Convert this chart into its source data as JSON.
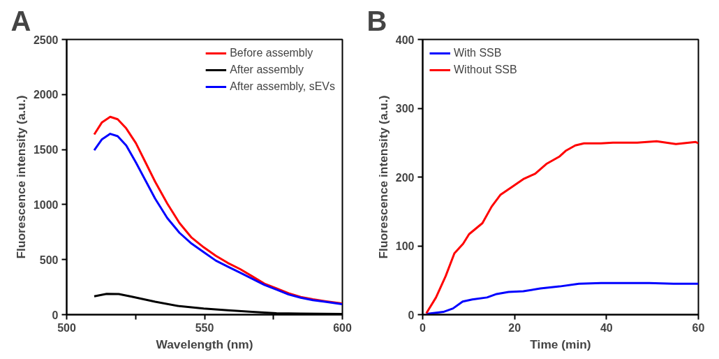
{
  "chart_data": [
    {
      "type": "line",
      "title": "A",
      "xlabel": "Wavelength (nm)",
      "ylabel": "Fluorescence intensity (a.u.)",
      "xlim": [
        500,
        600
      ],
      "ylim": [
        0,
        2500
      ],
      "xticks": [
        500,
        {
          "value": 525,
          "label": null
        },
        550,
        {
          "value": 575,
          "label": null
        },
        600
      ],
      "yticks": [
        0,
        500,
        1000,
        1500,
        2000,
        2500
      ],
      "grid": false,
      "legend": "top right",
      "series": [
        {
          "name": "Before assembly",
          "color": "#ff0000",
          "x": [
            510,
            512.8,
            515.8,
            518.5,
            521.6,
            525.1,
            528.6,
            532.1,
            536.5,
            540.9,
            545.3,
            549.7,
            554.1,
            558.5,
            562.9,
            567.3,
            571.7,
            576.1,
            580.5,
            584.9,
            589.3,
            593.7,
            599.9
          ],
          "values": [
            1637,
            1747,
            1797,
            1775,
            1692,
            1559,
            1383,
            1207,
            1009,
            833,
            700,
            612,
            535,
            469,
            414,
            348,
            282,
            238,
            194,
            161,
            139,
            123,
            101
          ]
        },
        {
          "name": "After assembly",
          "color": "#000000",
          "x": [
            510,
            514.5,
            518.9,
            523.3,
            532.1,
            540.9,
            549.7,
            558.5,
            567.3,
            576.1,
            584.9,
            599.9
          ],
          "values": [
            167,
            189,
            187,
            165,
            117,
            77,
            55,
            40,
            26,
            13,
            9,
            7
          ]
        },
        {
          "name": "After assembly, sEVs",
          "color": "#0000ff",
          "x": [
            510,
            512.8,
            515.8,
            518.5,
            521.6,
            525.1,
            528.6,
            532.1,
            536.5,
            540.9,
            545.3,
            549.7,
            554.1,
            558.5,
            562.9,
            567.3,
            571.7,
            576.1,
            580.5,
            584.9,
            589.3,
            593.7,
            599.9
          ],
          "values": [
            1493,
            1593,
            1643,
            1621,
            1537,
            1383,
            1218,
            1053,
            877,
            744,
            645,
            568,
            491,
            436,
            381,
            326,
            271,
            227,
            183,
            154,
            132,
            117,
            95
          ]
        }
      ]
    },
    {
      "type": "line",
      "title": "B",
      "xlabel": "Time (min)",
      "ylabel": "Fluorescence intensity (a.u.)",
      "xlim": [
        0,
        60
      ],
      "ylim": [
        0,
        400
      ],
      "xticks": [
        0,
        20,
        40,
        60
      ],
      "yticks": [
        0,
        100,
        200,
        300,
        400
      ],
      "grid": false,
      "legend": "top left",
      "series": [
        {
          "name": "With SSB",
          "color": "#0000ff",
          "x": [
            0.8,
            4.5,
            6.6,
            8.7,
            10.8,
            14.0,
            16.1,
            18.7,
            21.9,
            25.6,
            29.8,
            34.0,
            38.8,
            44.1,
            49.3,
            54.6,
            60
          ],
          "values": [
            1,
            4,
            9,
            19,
            22,
            25,
            30,
            33,
            34,
            38,
            41,
            45,
            46,
            46,
            46,
            45,
            45
          ]
        },
        {
          "name": "Without SSB",
          "color": "#ff0000",
          "x": [
            0.8,
            2.9,
            5.0,
            6.9,
            8.8,
            10.1,
            13.0,
            15.0,
            16.9,
            19.3,
            21.9,
            24.5,
            26.9,
            29.8,
            31.1,
            33.2,
            35.1,
            38.8,
            41.4,
            46.7,
            50.9,
            55.1,
            59.4,
            60
          ],
          "values": [
            2,
            25,
            56,
            89,
            103,
            117,
            133,
            157,
            174,
            185,
            197,
            205,
            219,
            230,
            238,
            246,
            249,
            249,
            250,
            250,
            252,
            248,
            251,
            249
          ]
        }
      ]
    }
  ]
}
